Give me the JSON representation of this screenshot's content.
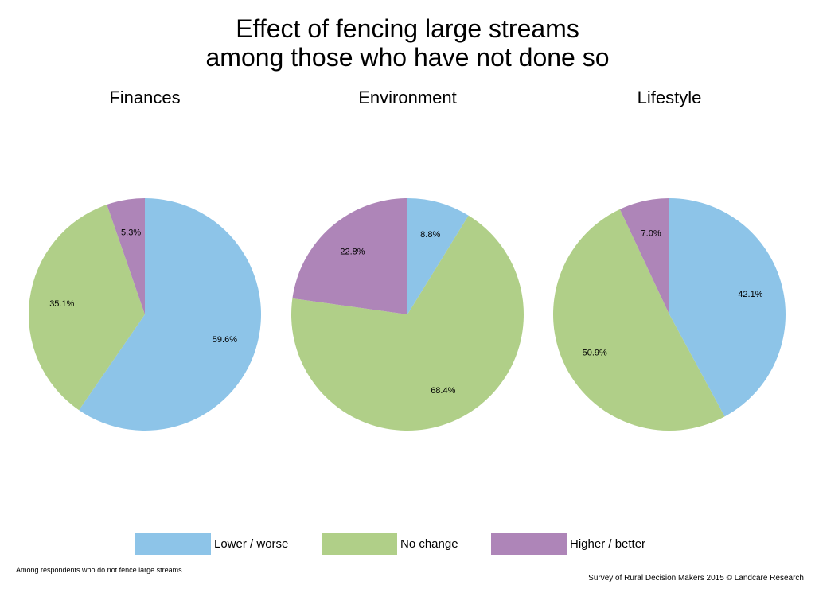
{
  "title_line1": "Effect of fencing large streams",
  "title_line2": "among those who have not done so",
  "colors": {
    "lower": "#8dc4e8",
    "nochange": "#b0cf88",
    "higher": "#ae85b8"
  },
  "legend": [
    {
      "label": "Lower / worse",
      "color_key": "lower"
    },
    {
      "label": "No change",
      "color_key": "nochange"
    },
    {
      "label": "Higher / better",
      "color_key": "higher"
    }
  ],
  "chart_data": [
    {
      "type": "pie",
      "title": "Finances",
      "categories": [
        "Lower / worse",
        "No change",
        "Higher / better"
      ],
      "values": [
        59.6,
        35.1,
        5.3
      ],
      "labels": [
        "59.6%",
        "35.1%",
        "5.3%"
      ],
      "start_angle": "12 o'clock",
      "direction": "clockwise"
    },
    {
      "type": "pie",
      "title": "Environment",
      "categories": [
        "Lower / worse",
        "No change",
        "Higher / better"
      ],
      "values": [
        8.8,
        68.4,
        22.8
      ],
      "labels": [
        "8.8%",
        "68.4%",
        "22.8%"
      ],
      "start_angle": "12 o'clock",
      "direction": "clockwise"
    },
    {
      "type": "pie",
      "title": "Lifestyle",
      "categories": [
        "Lower / worse",
        "No change",
        "Higher / better"
      ],
      "values": [
        42.1,
        50.9,
        7.0
      ],
      "labels": [
        "42.1%",
        "50.9%",
        "7.0%"
      ],
      "start_angle": "12 o'clock",
      "direction": "clockwise"
    }
  ],
  "footnote": "Among respondents who do not fence large streams.",
  "credit": "Survey of Rural Decision Makers 2015 © Landcare Research"
}
